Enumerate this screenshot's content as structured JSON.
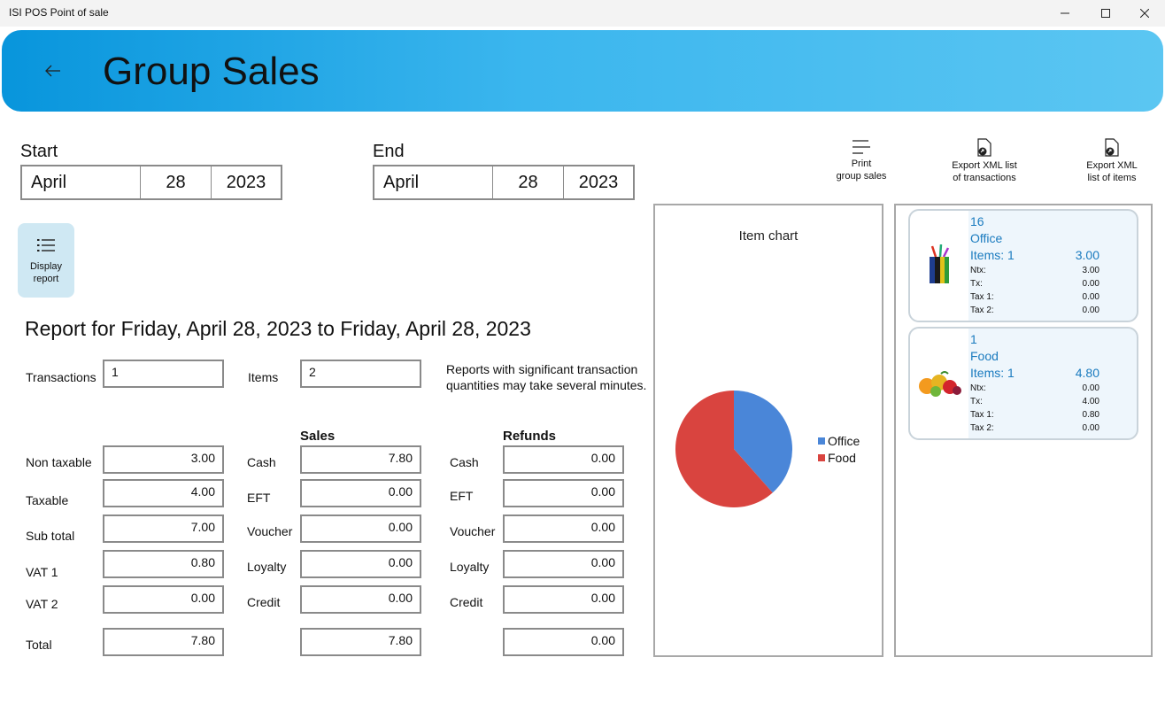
{
  "window": {
    "title": "ISI POS Point of sale"
  },
  "header": {
    "title": "Group Sales"
  },
  "start": {
    "label": "Start",
    "month": "April",
    "day": "28",
    "year": "2023"
  },
  "end": {
    "label": "End",
    "month": "April",
    "day": "28",
    "year": "2023"
  },
  "toolbar": {
    "print_line1": "Print",
    "print_line2": "group sales",
    "export_tx_line1": "Export XML list",
    "export_tx_line2": "of transactions",
    "export_items_line1": "Export XML",
    "export_items_line2": "list of items"
  },
  "display_report": {
    "line1": "Display",
    "line2": "report"
  },
  "report": {
    "title": "Report for Friday, April 28, 2023 to Friday, April 28, 2023",
    "transactions_label": "Transactions",
    "transactions_value": "1",
    "items_label": "Items",
    "items_value": "2",
    "note_line1": "Reports with significant transaction",
    "note_line2": "quantities may take several minutes."
  },
  "totals": {
    "non_taxable_label": "Non taxable",
    "non_taxable": "3.00",
    "taxable_label": "Taxable",
    "taxable": "4.00",
    "sub_total_label": "Sub total",
    "sub_total": "7.00",
    "vat1_label": "VAT 1",
    "vat1": "0.80",
    "vat2_label": "VAT 2",
    "vat2": "0.00",
    "total_label": "Total",
    "total": "7.80"
  },
  "sales": {
    "heading": "Sales",
    "cash_label": "Cash",
    "cash": "7.80",
    "eft_label": "EFT",
    "eft": "0.00",
    "voucher_label": "Voucher",
    "voucher": "0.00",
    "loyalty_label": "Loyalty",
    "loyalty": "0.00",
    "credit_label": "Credit",
    "credit": "0.00",
    "total": "7.80"
  },
  "refunds": {
    "heading": "Refunds",
    "cash_label": "Cash",
    "cash": "0.00",
    "eft_label": "EFT",
    "eft": "0.00",
    "voucher_label": "Voucher",
    "voucher": "0.00",
    "loyalty_label": "Loyalty",
    "loyalty": "0.00",
    "credit_label": "Credit",
    "credit": "0.00",
    "total": "0.00"
  },
  "chart_data": {
    "type": "pie",
    "title": "Item chart",
    "categories": [
      "Office",
      "Food"
    ],
    "values": [
      3.0,
      4.8
    ],
    "colors": [
      "#4a86d8",
      "#d9443f"
    ],
    "legend": "right"
  },
  "item_cards": [
    {
      "qty": "16",
      "name": "Office",
      "items": "Items: 1",
      "total": "3.00",
      "ntx_label": "Ntx:",
      "ntx": "3.00",
      "tx_label": "Tx:",
      "tx": "0.00",
      "tax1_label": "Tax 1:",
      "tax1": "0.00",
      "tax2_label": "Tax 2:",
      "tax2": "0.00"
    },
    {
      "qty": "1",
      "name": "Food",
      "items": "Items: 1",
      "total": "4.80",
      "ntx_label": "Ntx:",
      "ntx": "0.00",
      "tx_label": "Tx:",
      "tx": "4.00",
      "tax1_label": "Tax 1:",
      "tax1": "0.80",
      "tax2_label": "Tax 2:",
      "tax2": "0.00"
    }
  ]
}
